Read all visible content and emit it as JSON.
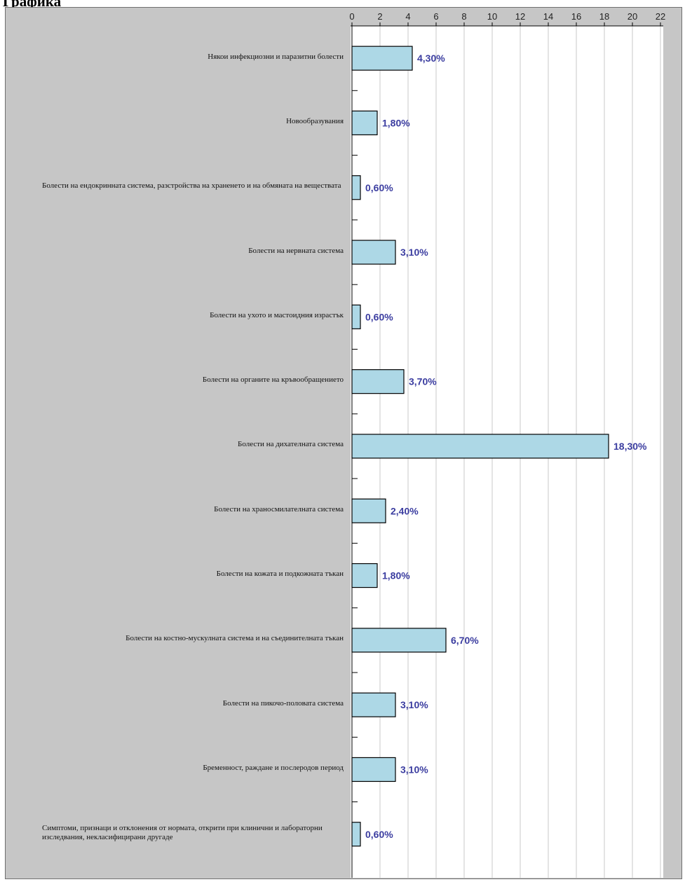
{
  "heading": "Графика",
  "chart_data": {
    "type": "bar",
    "orientation": "horizontal",
    "categories": [
      "Някои инфекциозни и паразитни болести",
      "Новообразувания",
      "Болести на ендокринната система, разстройства на храненето и на обмяната на веществата",
      "Болести на нервната система",
      "Болести на ухото и мастоидния израстък",
      "Болести на органите на кръвообращението",
      "Болести на дихателната система",
      "Болести на храносмилателната система",
      "Болести на кожата и подкожната тъкан",
      "Болести на костно-мускулната система и на съединителната тъкан",
      "Болести на пикочо-половата система",
      "Бременност, раждане и послеродов период",
      "Симптоми, признаци и отклонения от нормата, открити при клинични и лабораторни изследвания, некласифицирани другаде"
    ],
    "values": [
      4.3,
      1.8,
      0.6,
      3.1,
      0.6,
      3.7,
      18.3,
      2.4,
      1.8,
      6.7,
      3.1,
      3.1,
      0.6
    ],
    "value_labels": [
      "4,30%",
      "1,80%",
      "0,60%",
      "3,10%",
      "0,60%",
      "3,70%",
      "18,30%",
      "2,40%",
      "1,80%",
      "6,70%",
      "3,10%",
      "3,10%",
      "0,60%"
    ],
    "xlim": [
      0,
      22
    ],
    "x_ticks": [
      "0",
      "2",
      "4",
      "6",
      "8",
      "10",
      "12",
      "14",
      "16",
      "18",
      "20",
      "22"
    ],
    "x_axis_position": "top",
    "grid": "vertical",
    "colors": {
      "bar_fill": "#add8e6",
      "bar_stroke": "#000000",
      "plot_bg": "#ffffff",
      "frame_bg": "#c6c6c6",
      "value_label": "#3b3da0",
      "grid": "#c8c8c8"
    }
  }
}
